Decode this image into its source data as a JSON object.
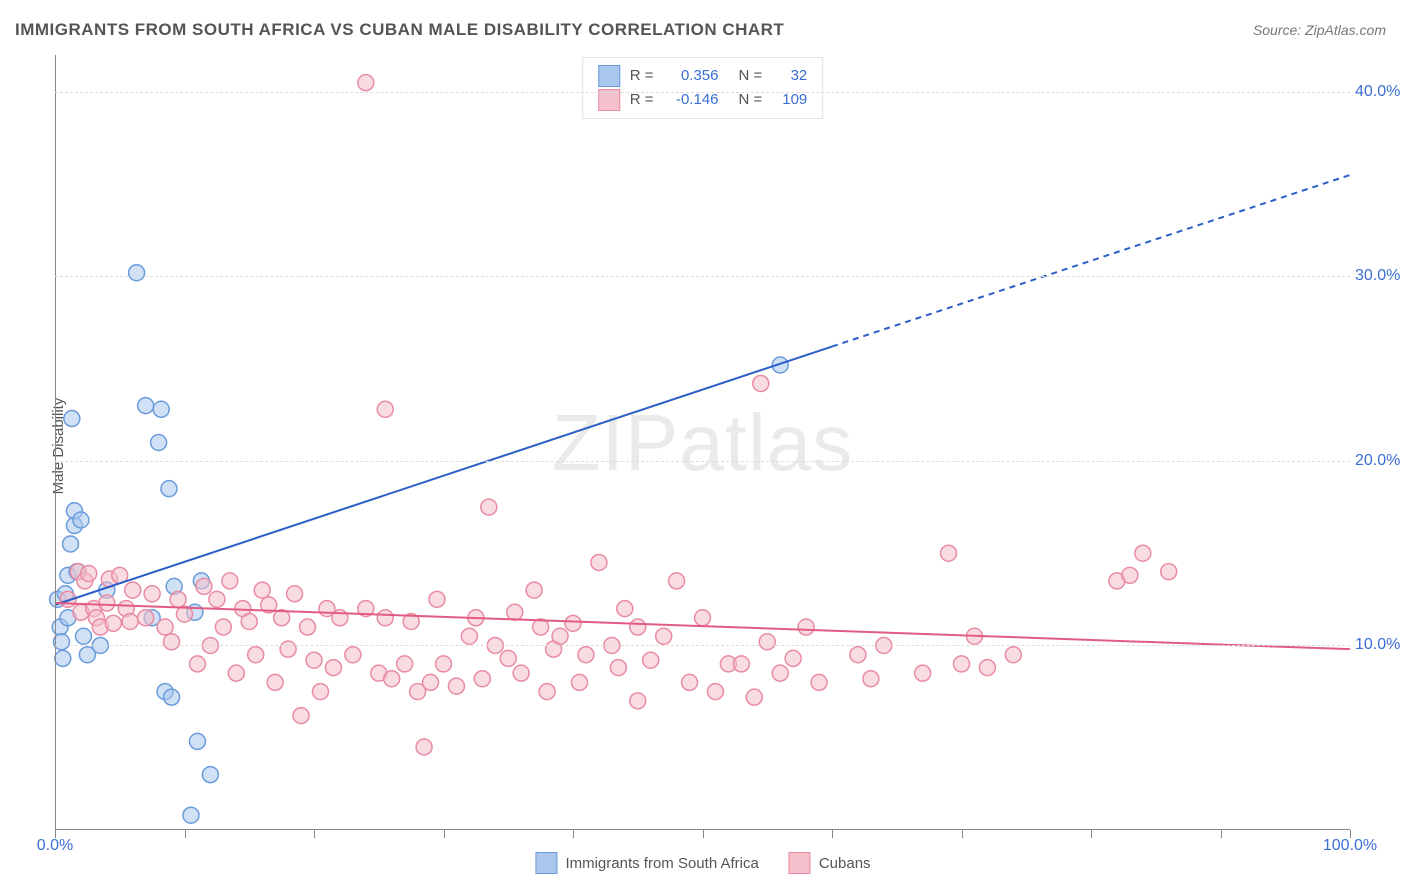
{
  "title": "IMMIGRANTS FROM SOUTH AFRICA VS CUBAN MALE DISABILITY CORRELATION CHART",
  "source": "Source: ZipAtlas.com",
  "ylabel": "Male Disability",
  "watermark": "ZIPatlas",
  "chart": {
    "type": "scatter-correlation",
    "xlim": [
      0,
      100
    ],
    "ylim": [
      0,
      42
    ],
    "x_ticks": [
      0,
      10,
      20,
      30,
      40,
      50,
      60,
      70,
      80,
      90,
      100
    ],
    "x_tick_labels": {
      "0": "0.0%",
      "100": "100.0%"
    },
    "y_ticks": [
      10,
      20,
      30,
      40
    ],
    "y_tick_labels": [
      "10.0%",
      "20.0%",
      "30.0%",
      "40.0%"
    ],
    "grid_color": "#dddddd",
    "axis_color": "#888888",
    "background_color": "#ffffff",
    "tick_label_color": "#3b6fd4",
    "marker_radius": 8,
    "marker_opacity": 0.55,
    "trend_line_width": 2,
    "series": [
      {
        "name": "Immigrants from South Africa",
        "color_fill": "#a9c6ec",
        "color_stroke": "#6a9cdc",
        "R": 0.356,
        "N": 32,
        "trend": {
          "x1": 0,
          "y1": 12.2,
          "x2_solid": 60,
          "y2_solid": 26.2,
          "x2": 100,
          "y2": 35.5,
          "color": "#2b5fc7"
        },
        "points": [
          [
            0.2,
            12.5
          ],
          [
            0.4,
            11.0
          ],
          [
            0.5,
            10.2
          ],
          [
            0.6,
            9.3
          ],
          [
            0.8,
            12.8
          ],
          [
            1.0,
            13.8
          ],
          [
            1.0,
            11.5
          ],
          [
            1.2,
            15.5
          ],
          [
            1.3,
            22.3
          ],
          [
            1.5,
            16.5
          ],
          [
            1.5,
            17.3
          ],
          [
            1.7,
            14.0
          ],
          [
            2.0,
            16.8
          ],
          [
            2.2,
            10.5
          ],
          [
            2.5,
            9.5
          ],
          [
            3.5,
            10.0
          ],
          [
            4.0,
            13.0
          ],
          [
            6.3,
            30.2
          ],
          [
            7.0,
            23.0
          ],
          [
            7.5,
            11.5
          ],
          [
            8.0,
            21.0
          ],
          [
            8.2,
            22.8
          ],
          [
            8.5,
            7.5
          ],
          [
            8.8,
            18.5
          ],
          [
            9.0,
            7.2
          ],
          [
            9.2,
            13.2
          ],
          [
            10.5,
            0.8
          ],
          [
            10.8,
            11.8
          ],
          [
            11.0,
            4.8
          ],
          [
            11.3,
            13.5
          ],
          [
            12.0,
            3.0
          ],
          [
            56.0,
            25.2
          ]
        ]
      },
      {
        "name": "Cubans",
        "color_fill": "#f4c0cb",
        "color_stroke": "#e98ba2",
        "R": -0.146,
        "N": 109,
        "trend": {
          "x1": 0,
          "y1": 12.3,
          "x2_solid": 100,
          "y2_solid": 9.8,
          "x2": 100,
          "y2": 9.8,
          "color": "#e25b82"
        },
        "points": [
          [
            1.0,
            12.5
          ],
          [
            1.8,
            14.0
          ],
          [
            2.0,
            11.8
          ],
          [
            2.3,
            13.5
          ],
          [
            2.6,
            13.9
          ],
          [
            3.0,
            12.0
          ],
          [
            3.2,
            11.5
          ],
          [
            3.5,
            11.0
          ],
          [
            4.0,
            12.3
          ],
          [
            4.2,
            13.6
          ],
          [
            4.5,
            11.2
          ],
          [
            5.0,
            13.8
          ],
          [
            5.5,
            12.0
          ],
          [
            5.8,
            11.3
          ],
          [
            6.0,
            13.0
          ],
          [
            7.0,
            11.5
          ],
          [
            7.5,
            12.8
          ],
          [
            8.5,
            11.0
          ],
          [
            9.0,
            10.2
          ],
          [
            9.5,
            12.5
          ],
          [
            10.0,
            11.7
          ],
          [
            11.0,
            9.0
          ],
          [
            11.5,
            13.2
          ],
          [
            12.0,
            10.0
          ],
          [
            12.5,
            12.5
          ],
          [
            13.0,
            11.0
          ],
          [
            13.5,
            13.5
          ],
          [
            14.0,
            8.5
          ],
          [
            14.5,
            12.0
          ],
          [
            15.0,
            11.3
          ],
          [
            15.5,
            9.5
          ],
          [
            16.0,
            13.0
          ],
          [
            16.5,
            12.2
          ],
          [
            17.0,
            8.0
          ],
          [
            17.5,
            11.5
          ],
          [
            18.0,
            9.8
          ],
          [
            18.5,
            12.8
          ],
          [
            19.0,
            6.2
          ],
          [
            19.5,
            11.0
          ],
          [
            20.0,
            9.2
          ],
          [
            20.5,
            7.5
          ],
          [
            21.0,
            12.0
          ],
          [
            21.5,
            8.8
          ],
          [
            22.0,
            11.5
          ],
          [
            23.0,
            9.5
          ],
          [
            24.0,
            40.5
          ],
          [
            24.0,
            12.0
          ],
          [
            25.0,
            8.5
          ],
          [
            25.5,
            11.5
          ],
          [
            25.5,
            22.8
          ],
          [
            26.0,
            8.2
          ],
          [
            27.0,
            9.0
          ],
          [
            27.5,
            11.3
          ],
          [
            28.0,
            7.5
          ],
          [
            28.5,
            4.5
          ],
          [
            29.0,
            8.0
          ],
          [
            29.5,
            12.5
          ],
          [
            30.0,
            9.0
          ],
          [
            31.0,
            7.8
          ],
          [
            32.0,
            10.5
          ],
          [
            32.5,
            11.5
          ],
          [
            33.0,
            8.2
          ],
          [
            33.5,
            17.5
          ],
          [
            34.0,
            10.0
          ],
          [
            35.0,
            9.3
          ],
          [
            35.5,
            11.8
          ],
          [
            36.0,
            8.5
          ],
          [
            37.0,
            13.0
          ],
          [
            37.5,
            11.0
          ],
          [
            38.0,
            7.5
          ],
          [
            38.5,
            9.8
          ],
          [
            39.0,
            10.5
          ],
          [
            40.0,
            11.2
          ],
          [
            40.5,
            8.0
          ],
          [
            41.0,
            9.5
          ],
          [
            42.0,
            14.5
          ],
          [
            43.0,
            10.0
          ],
          [
            43.5,
            8.8
          ],
          [
            44.0,
            12.0
          ],
          [
            45.0,
            11.0
          ],
          [
            45.0,
            7.0
          ],
          [
            46.0,
            9.2
          ],
          [
            47.0,
            10.5
          ],
          [
            48.0,
            13.5
          ],
          [
            49.0,
            8.0
          ],
          [
            50.0,
            11.5
          ],
          [
            51.0,
            7.5
          ],
          [
            52.0,
            9.0
          ],
          [
            53.0,
            9.0
          ],
          [
            54.0,
            7.2
          ],
          [
            54.5,
            24.2
          ],
          [
            55.0,
            10.2
          ],
          [
            56.0,
            8.5
          ],
          [
            57.0,
            9.3
          ],
          [
            58.0,
            11.0
          ],
          [
            59.0,
            8.0
          ],
          [
            62.0,
            9.5
          ],
          [
            63.0,
            8.2
          ],
          [
            64.0,
            10.0
          ],
          [
            67.0,
            8.5
          ],
          [
            69.0,
            15.0
          ],
          [
            70.0,
            9.0
          ],
          [
            71.0,
            10.5
          ],
          [
            72.0,
            8.8
          ],
          [
            74.0,
            9.5
          ],
          [
            82.0,
            13.5
          ],
          [
            83.0,
            13.8
          ],
          [
            84.0,
            15.0
          ],
          [
            86.0,
            14.0
          ]
        ]
      }
    ],
    "legend": {
      "position": "top-center",
      "label_R": "R =",
      "label_N": "N =",
      "value_color": "#3b6fd4",
      "label_color": "#555555"
    }
  }
}
